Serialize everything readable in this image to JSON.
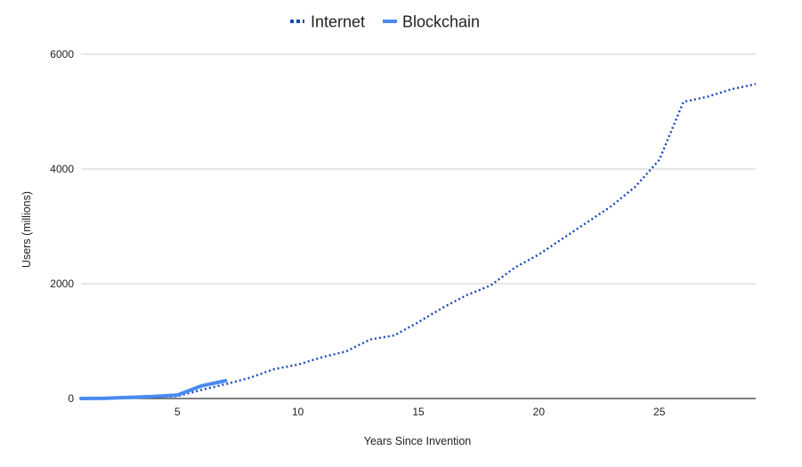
{
  "chart_data": {
    "type": "line",
    "xlabel": "Years Since Invention",
    "ylabel": "Users (millions)",
    "xlim": [
      1,
      29
    ],
    "ylim": [
      0,
      6000
    ],
    "x_ticks": [
      5,
      10,
      15,
      20,
      25
    ],
    "y_ticks": [
      0,
      2000,
      4000,
      6000
    ],
    "grid": "horizontal",
    "legend_position": "top-center",
    "series": [
      {
        "name": "Internet",
        "color": "#1a47b8",
        "style": "dotted",
        "x": [
          1,
          2,
          3,
          4,
          5,
          6,
          7,
          8,
          9,
          10,
          11,
          12,
          13,
          14,
          15,
          16,
          17,
          18,
          19,
          20,
          21,
          22,
          23,
          24,
          25,
          26,
          27,
          28,
          29
        ],
        "y": [
          0,
          10,
          20,
          30,
          40,
          150,
          250,
          360,
          510,
          590,
          720,
          820,
          1030,
          1100,
          1330,
          1580,
          1800,
          1970,
          2280,
          2510,
          2790,
          3070,
          3350,
          3690,
          4160,
          5170,
          5260,
          5390,
          5480
        ]
      },
      {
        "name": "Blockchain",
        "color": "#4a8af0",
        "style": "solid",
        "x": [
          1,
          2,
          3,
          4,
          5,
          6,
          7
        ],
        "y": [
          0,
          5,
          20,
          35,
          60,
          220,
          310
        ]
      }
    ]
  }
}
